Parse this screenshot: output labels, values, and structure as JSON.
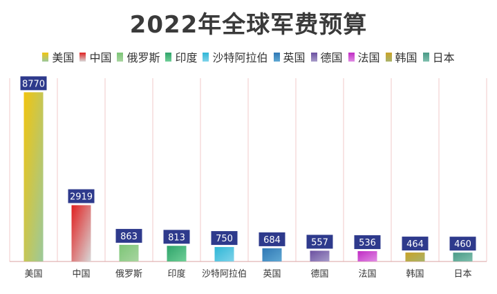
{
  "chart_data": {
    "type": "bar",
    "title": "2022年全球军费预算",
    "categories": [
      "美国",
      "中国",
      "俄罗斯",
      "印度",
      "沙特阿拉伯",
      "英国",
      "德国",
      "法国",
      "韩国",
      "日本"
    ],
    "values": [
      8770,
      2919,
      863,
      813,
      750,
      684,
      557,
      536,
      464,
      460
    ],
    "ylim": [
      0,
      9500
    ],
    "grid": "vertical",
    "legend_position": "top",
    "colors": [
      [
        "#f1c40f",
        "#9bc99b"
      ],
      [
        "#e02020",
        "#d8d8d8"
      ],
      [
        "#7cc576",
        "#a8d5a0"
      ],
      [
        "#2ea36a",
        "#6fcf97"
      ],
      [
        "#2eb6d6",
        "#7fd3ea"
      ],
      [
        "#2f77b4",
        "#5fa8d3"
      ],
      [
        "#6b4fa0",
        "#a79cc9"
      ],
      [
        "#c02bc4",
        "#e08ce4"
      ],
      [
        "#c9a227",
        "#a9b36a"
      ],
      [
        "#4a9a86",
        "#7fbfae"
      ]
    ],
    "label_bg": "#2e3a8c"
  }
}
